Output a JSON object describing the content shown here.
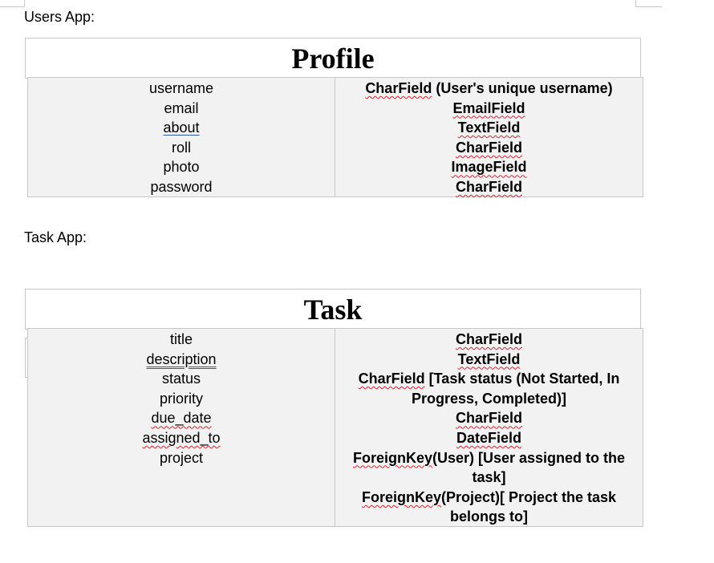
{
  "users_section": {
    "label": "Users App:",
    "table_title": "Profile",
    "fields": [
      {
        "name": "username",
        "type_main": "CharField",
        "type_rest": " (User's unique username)"
      },
      {
        "name": "email",
        "type_main": "EmailField",
        "type_rest": ""
      },
      {
        "name": "about",
        "type_main": "TextField",
        "type_rest": ""
      },
      {
        "name": "roll",
        "type_main": "CharField",
        "type_rest": ""
      },
      {
        "name": "photo",
        "type_main": "ImageField",
        "type_rest": ""
      },
      {
        "name": "password",
        "type_main": "CharField",
        "type_rest": ""
      }
    ]
  },
  "task_section": {
    "label": "Task App:",
    "table_title": "Task",
    "fields": [
      {
        "name": "title",
        "type_main": "CharField",
        "type_rest": ""
      },
      {
        "name": "description",
        "type_main": "TextField",
        "type_rest": ""
      },
      {
        "name": "status",
        "type_main": "CharField",
        "type_rest": " [Task status (Not Started, In Progress, Completed)]"
      },
      {
        "name": "priority",
        "type_main": "CharField",
        "type_rest": ""
      },
      {
        "name": "due_date",
        "type_main": "DateField",
        "type_rest": ""
      },
      {
        "name": "assigned_to",
        "type_main": "ForeignKey",
        "type_rest": "(User) [User assigned to the task]"
      },
      {
        "name": "project",
        "type_main": "ForeignKey",
        "type_rest": "(Project)[ Project the task belongs to]"
      }
    ]
  },
  "colors": {
    "table_bg": "#f2f2f2",
    "border": "#c8c8c8",
    "spell_squiggle": "#dd2233",
    "grammar_underline": "#2b5ba8"
  }
}
